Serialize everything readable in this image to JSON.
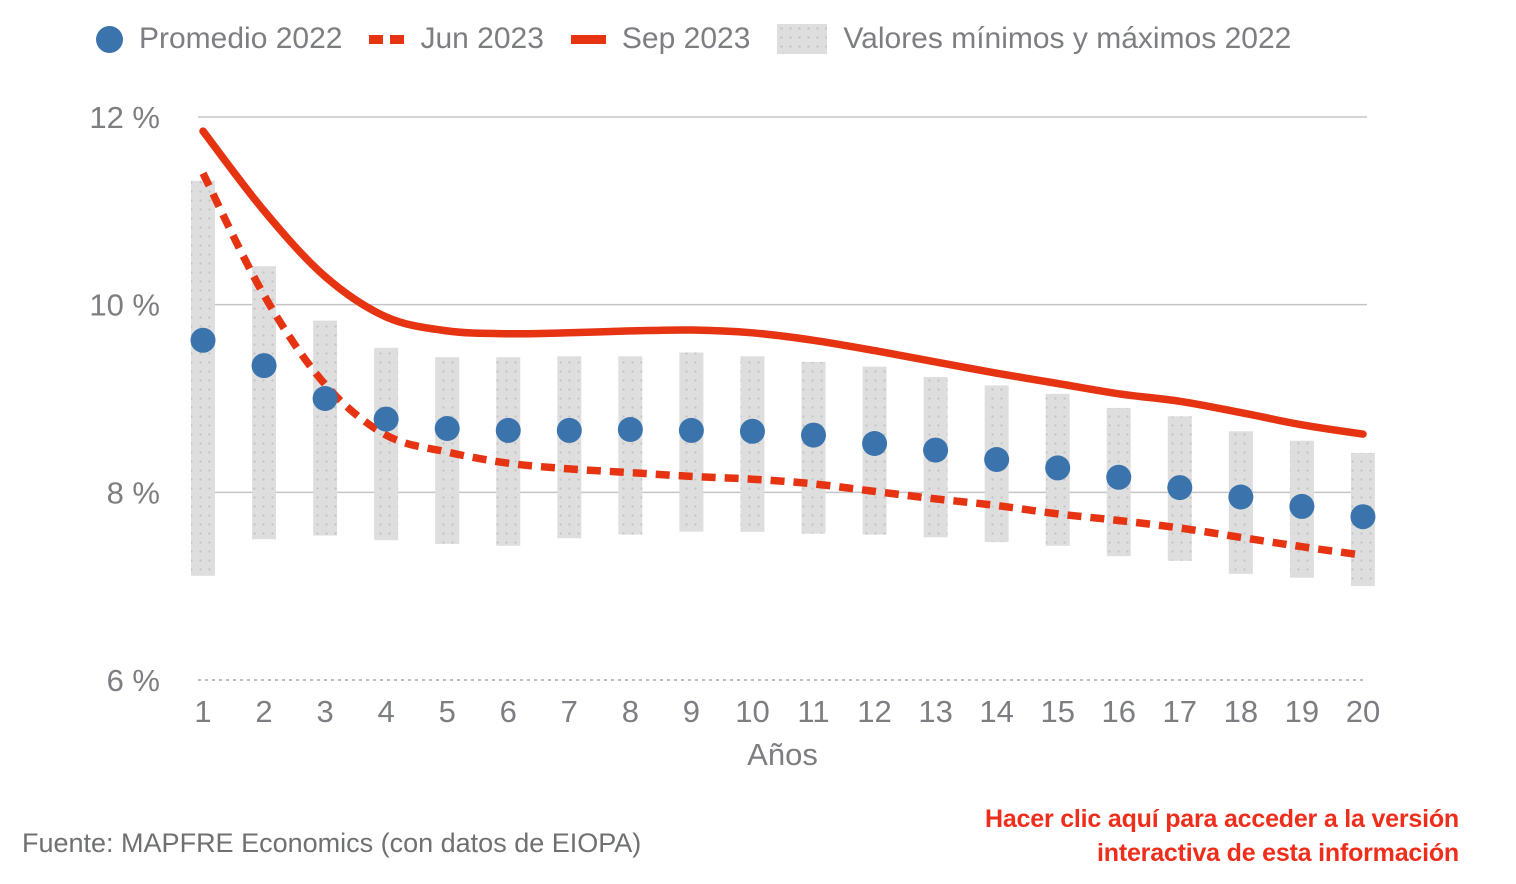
{
  "colors": {
    "brand_red": "#e63312",
    "link_red": "#ee2e1b",
    "dot_blue": "#3b74ad",
    "range_gray": "#dedede",
    "grid_gray": "#c5c5c5",
    "text_gray": "#7d7e81"
  },
  "legend": {
    "items": [
      {
        "label": "Promedio 2022",
        "swatch": "dot"
      },
      {
        "label": "Jun 2023",
        "swatch": "dashed-line"
      },
      {
        "label": "Sep 2023",
        "swatch": "solid-line"
      },
      {
        "label": "Valores mínimos y máximos 2022",
        "swatch": "box"
      }
    ]
  },
  "chart_data": {
    "type": "mixed",
    "x": [
      1,
      2,
      3,
      4,
      5,
      6,
      7,
      8,
      9,
      10,
      11,
      12,
      13,
      14,
      15,
      16,
      17,
      18,
      19,
      20
    ],
    "xlabel": "Años",
    "ylabel": "",
    "ylim": [
      6,
      12.3
    ],
    "grid": "horizontal",
    "legend_position": "top-left",
    "unit": "%",
    "y_ticks": [
      {
        "value": 12,
        "label": "12 %",
        "style": "solid"
      },
      {
        "value": 10,
        "label": "10 %",
        "style": "solid"
      },
      {
        "value": 8,
        "label": "8 %",
        "style": "solid"
      },
      {
        "value": 6,
        "label": "6 %",
        "style": "dotted"
      }
    ],
    "series": [
      {
        "name": "Valores mínimos y máximos 2022",
        "type": "range-bar",
        "color": "#dedede",
        "min": [
          7.11,
          7.5,
          7.54,
          7.49,
          7.45,
          7.43,
          7.51,
          7.55,
          7.58,
          7.58,
          7.56,
          7.55,
          7.52,
          7.47,
          7.43,
          7.32,
          7.27,
          7.13,
          7.09,
          7.0
        ],
        "max": [
          11.32,
          10.41,
          9.83,
          9.54,
          9.44,
          9.44,
          9.45,
          9.45,
          9.49,
          9.45,
          9.39,
          9.34,
          9.23,
          9.14,
          9.05,
          8.9,
          8.81,
          8.65,
          8.55,
          8.42
        ]
      },
      {
        "name": "Jun 2023",
        "type": "line",
        "style": "dashed",
        "color": "#e63312",
        "values": [
          11.4,
          10.1,
          9.15,
          8.61,
          8.43,
          8.31,
          8.25,
          8.21,
          8.17,
          8.14,
          8.09,
          8.01,
          7.93,
          7.86,
          7.77,
          7.7,
          7.62,
          7.52,
          7.42,
          7.33
        ]
      },
      {
        "name": "Sep 2023",
        "type": "line",
        "style": "solid",
        "color": "#e63312",
        "values": [
          11.85,
          11.0,
          10.3,
          9.87,
          9.72,
          9.69,
          9.7,
          9.72,
          9.73,
          9.7,
          9.62,
          9.51,
          9.39,
          9.27,
          9.16,
          9.05,
          8.97,
          8.85,
          8.72,
          8.62
        ]
      },
      {
        "name": "Promedio 2022",
        "type": "scatter",
        "color": "#3b74ad",
        "values": [
          9.62,
          9.35,
          9.0,
          8.78,
          8.68,
          8.66,
          8.66,
          8.67,
          8.66,
          8.65,
          8.61,
          8.52,
          8.45,
          8.35,
          8.26,
          8.16,
          8.05,
          7.95,
          7.85,
          7.74
        ]
      }
    ]
  },
  "footer": {
    "source": "Fuente: MAPFRE Economics (con datos de EIOPA)",
    "link_line1": "Hacer clic aquí para acceder a la versión",
    "link_line2": "interactiva de esta información"
  }
}
